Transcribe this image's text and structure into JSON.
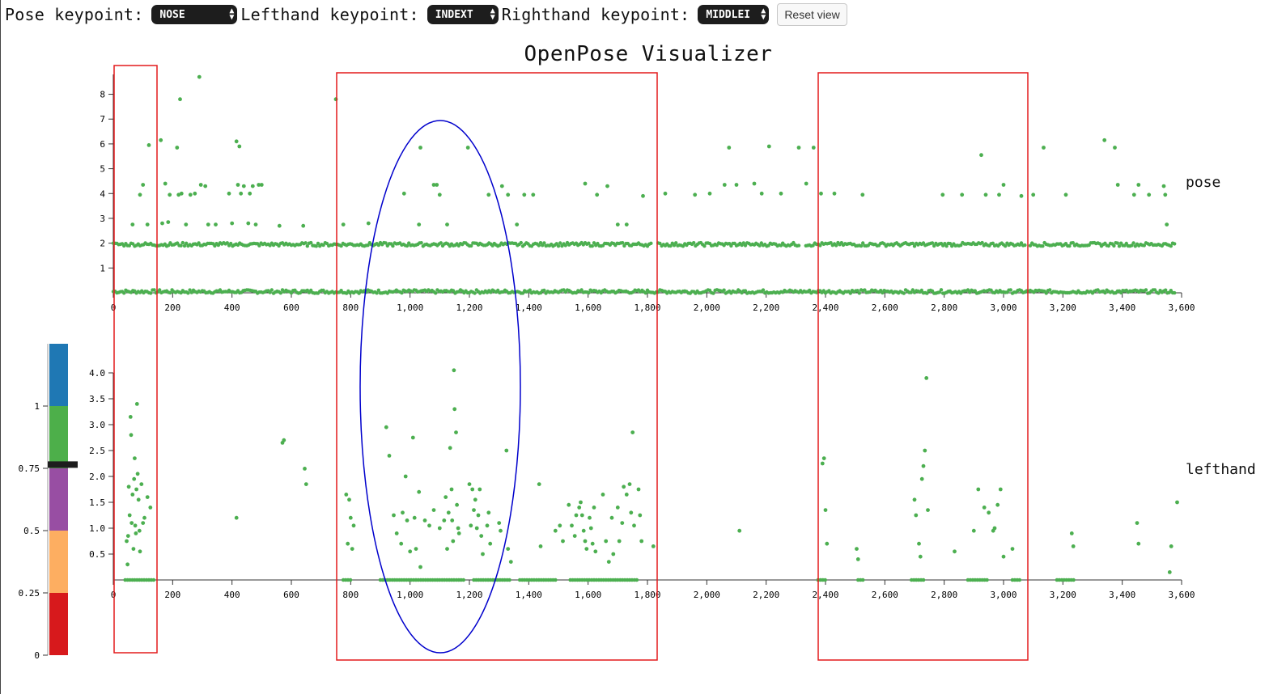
{
  "toolbar": {
    "pose_label": "Pose keypoint:",
    "pose_value": "NOSE",
    "lefthand_label": "Lefthand keypoint:",
    "lefthand_value": "INDEXT",
    "righthand_label": "Righthand keypoint:",
    "righthand_value": "MIDDLEI",
    "reset_label": "Reset view"
  },
  "colors": {
    "points": "#4caf50",
    "highlight_rect": "#e31a1c",
    "highlight_ellipse": "#0000cc",
    "legend_scale": [
      "#d7191c",
      "#fdae61",
      "#984ea3",
      "#4daf4a",
      "#1f78b4"
    ]
  },
  "chart_data": [
    {
      "type": "scatter",
      "title": "OpenPose Visualizer",
      "series": [
        {
          "name": "pose"
        }
      ],
      "xlim": [
        0,
        3600
      ],
      "ylim": [
        0,
        8.8
      ],
      "x_ticks": [
        "0",
        "200",
        "400",
        "600",
        "800",
        "1,000",
        "1,200",
        "1,400",
        "1,600",
        "1,800",
        "2,000",
        "2,200",
        "2,400",
        "2,600",
        "2,800",
        "3,000",
        "3,200",
        "3,400",
        "3,600"
      ],
      "y_ticks": [
        "1",
        "2",
        "3",
        "4",
        "5",
        "6",
        "7",
        "8"
      ],
      "dense_bands_y": [
        0.05,
        1.95
      ],
      "points": [
        [
          65,
          2.75
        ],
        [
          90,
          3.95
        ],
        [
          100,
          4.35
        ],
        [
          115,
          2.75
        ],
        [
          120,
          5.95
        ],
        [
          160,
          6.15
        ],
        [
          165,
          2.8
        ],
        [
          175,
          4.4
        ],
        [
          185,
          2.85
        ],
        [
          190,
          3.95
        ],
        [
          215,
          5.85
        ],
        [
          220,
          3.95
        ],
        [
          225,
          7.8
        ],
        [
          230,
          4.0
        ],
        [
          245,
          2.75
        ],
        [
          260,
          3.95
        ],
        [
          275,
          4.0
        ],
        [
          290,
          8.7
        ],
        [
          295,
          4.35
        ],
        [
          310,
          4.3
        ],
        [
          320,
          2.75
        ],
        [
          345,
          2.75
        ],
        [
          390,
          4.0
        ],
        [
          400,
          2.8
        ],
        [
          415,
          6.1
        ],
        [
          420,
          4.35
        ],
        [
          425,
          5.9
        ],
        [
          430,
          4.0
        ],
        [
          440,
          4.3
        ],
        [
          455,
          2.8
        ],
        [
          460,
          4.0
        ],
        [
          470,
          4.3
        ],
        [
          480,
          2.75
        ],
        [
          490,
          4.35
        ],
        [
          500,
          4.35
        ],
        [
          560,
          2.7
        ],
        [
          640,
          2.7
        ],
        [
          750,
          7.8
        ],
        [
          775,
          2.75
        ],
        [
          860,
          2.8
        ],
        [
          980,
          4.0
        ],
        [
          1030,
          2.75
        ],
        [
          1035,
          5.85
        ],
        [
          1080,
          4.35
        ],
        [
          1090,
          4.35
        ],
        [
          1100,
          3.95
        ],
        [
          1125,
          2.75
        ],
        [
          1195,
          5.85
        ],
        [
          1265,
          3.95
        ],
        [
          1310,
          4.3
        ],
        [
          1330,
          3.95
        ],
        [
          1360,
          2.75
        ],
        [
          1385,
          3.95
        ],
        [
          1415,
          3.95
        ],
        [
          1590,
          4.4
        ],
        [
          1630,
          3.95
        ],
        [
          1665,
          4.3
        ],
        [
          1700,
          2.75
        ],
        [
          1730,
          2.75
        ],
        [
          1785,
          3.9
        ],
        [
          1860,
          4.0
        ],
        [
          1960,
          3.95
        ],
        [
          2010,
          4.0
        ],
        [
          2060,
          4.35
        ],
        [
          2075,
          5.85
        ],
        [
          2100,
          4.35
        ],
        [
          2160,
          4.4
        ],
        [
          2185,
          4.0
        ],
        [
          2210,
          5.9
        ],
        [
          2250,
          4.0
        ],
        [
          2310,
          5.85
        ],
        [
          2335,
          4.4
        ],
        [
          2360,
          5.85
        ],
        [
          2385,
          4.0
        ],
        [
          2430,
          4.0
        ],
        [
          2525,
          3.95
        ],
        [
          2795,
          3.95
        ],
        [
          2860,
          3.95
        ],
        [
          2925,
          5.55
        ],
        [
          2940,
          3.95
        ],
        [
          2985,
          3.95
        ],
        [
          3000,
          4.35
        ],
        [
          3060,
          3.9
        ],
        [
          3100,
          3.95
        ],
        [
          3135,
          5.85
        ],
        [
          3210,
          3.95
        ],
        [
          3340,
          6.15
        ],
        [
          3375,
          5.85
        ],
        [
          3385,
          4.35
        ],
        [
          3440,
          3.95
        ],
        [
          3455,
          4.35
        ],
        [
          3490,
          3.95
        ],
        [
          3540,
          4.3
        ],
        [
          3545,
          3.95
        ],
        [
          3550,
          2.75
        ]
      ]
    },
    {
      "type": "scatter",
      "series": [
        {
          "name": "lefthand"
        }
      ],
      "xlim": [
        0,
        3600
      ],
      "ylim": [
        0,
        4.0
      ],
      "x_ticks": [
        "0",
        "200",
        "400",
        "600",
        "800",
        "1,000",
        "1,200",
        "1,400",
        "1,600",
        "1,800",
        "2,000",
        "2,200",
        "2,400",
        "2,600",
        "2,800",
        "3,000",
        "3,200",
        "3,400",
        "3,600"
      ],
      "y_ticks": [
        "0.5",
        "1.0",
        "1.5",
        "2.0",
        "2.5",
        "3.0",
        "3.5",
        "4.0"
      ],
      "baseline_clusters": [
        [
          40,
          140
        ],
        [
          775,
          800
        ],
        [
          900,
          1180
        ],
        [
          1215,
          1340
        ],
        [
          1370,
          1490
        ],
        [
          1540,
          1770
        ],
        [
          2375,
          2400
        ],
        [
          2510,
          2530
        ],
        [
          2690,
          2730
        ],
        [
          2880,
          2950
        ],
        [
          3030,
          3060
        ],
        [
          3180,
          3240
        ]
      ],
      "points": [
        [
          45,
          0.75
        ],
        [
          48,
          0.3
        ],
        [
          50,
          0.85
        ],
        [
          52,
          1.8
        ],
        [
          55,
          1.25
        ],
        [
          58,
          3.15
        ],
        [
          60,
          2.8
        ],
        [
          62,
          1.1
        ],
        [
          65,
          1.65
        ],
        [
          68,
          0.6
        ],
        [
          70,
          1.95
        ],
        [
          72,
          2.35
        ],
        [
          74,
          1.05
        ],
        [
          76,
          0.9
        ],
        [
          78,
          1.75
        ],
        [
          80,
          3.4
        ],
        [
          82,
          2.05
        ],
        [
          85,
          1.55
        ],
        [
          88,
          0.95
        ],
        [
          90,
          0.55
        ],
        [
          95,
          1.85
        ],
        [
          100,
          1.1
        ],
        [
          105,
          1.2
        ],
        [
          115,
          1.6
        ],
        [
          125,
          1.4
        ],
        [
          415,
          1.2
        ],
        [
          570,
          2.65
        ],
        [
          575,
          2.7
        ],
        [
          645,
          2.15
        ],
        [
          650,
          1.85
        ],
        [
          785,
          1.65
        ],
        [
          790,
          0.7
        ],
        [
          795,
          1.55
        ],
        [
          800,
          1.2
        ],
        [
          805,
          0.6
        ],
        [
          810,
          1.05
        ],
        [
          920,
          2.95
        ],
        [
          930,
          2.4
        ],
        [
          945,
          1.25
        ],
        [
          955,
          0.9
        ],
        [
          970,
          0.7
        ],
        [
          975,
          1.3
        ],
        [
          985,
          2.0
        ],
        [
          990,
          1.15
        ],
        [
          1000,
          0.55
        ],
        [
          1010,
          2.75
        ],
        [
          1015,
          1.2
        ],
        [
          1020,
          0.6
        ],
        [
          1030,
          1.7
        ],
        [
          1035,
          0.25
        ],
        [
          1050,
          1.15
        ],
        [
          1065,
          1.05
        ],
        [
          1080,
          1.35
        ],
        [
          1100,
          1.0
        ],
        [
          1115,
          1.15
        ],
        [
          1120,
          1.6
        ],
        [
          1125,
          0.6
        ],
        [
          1130,
          1.3
        ],
        [
          1135,
          2.55
        ],
        [
          1140,
          1.75
        ],
        [
          1142,
          1.15
        ],
        [
          1145,
          0.75
        ],
        [
          1148,
          4.05
        ],
        [
          1150,
          3.3
        ],
        [
          1155,
          2.85
        ],
        [
          1158,
          1.45
        ],
        [
          1162,
          1.0
        ],
        [
          1165,
          0.9
        ],
        [
          1200,
          1.85
        ],
        [
          1205,
          1.05
        ],
        [
          1210,
          1.75
        ],
        [
          1215,
          1.35
        ],
        [
          1220,
          1.55
        ],
        [
          1225,
          1.0
        ],
        [
          1230,
          1.25
        ],
        [
          1235,
          1.75
        ],
        [
          1240,
          0.85
        ],
        [
          1245,
          0.5
        ],
        [
          1260,
          1.05
        ],
        [
          1265,
          1.3
        ],
        [
          1270,
          0.7
        ],
        [
          1300,
          1.1
        ],
        [
          1305,
          0.95
        ],
        [
          1325,
          2.5
        ],
        [
          1330,
          0.6
        ],
        [
          1340,
          0.35
        ],
        [
          1435,
          1.85
        ],
        [
          1440,
          0.65
        ],
        [
          1490,
          0.95
        ],
        [
          1505,
          1.05
        ],
        [
          1515,
          0.75
        ],
        [
          1535,
          1.45
        ],
        [
          1545,
          1.05
        ],
        [
          1555,
          0.85
        ],
        [
          1560,
          1.25
        ],
        [
          1570,
          1.4
        ],
        [
          1575,
          1.5
        ],
        [
          1580,
          1.25
        ],
        [
          1585,
          0.95
        ],
        [
          1590,
          0.75
        ],
        [
          1595,
          0.6
        ],
        [
          1605,
          1.2
        ],
        [
          1610,
          1.0
        ],
        [
          1615,
          0.7
        ],
        [
          1620,
          1.4
        ],
        [
          1625,
          0.55
        ],
        [
          1650,
          1.65
        ],
        [
          1660,
          0.75
        ],
        [
          1670,
          0.35
        ],
        [
          1680,
          1.2
        ],
        [
          1685,
          0.5
        ],
        [
          1700,
          1.4
        ],
        [
          1705,
          0.75
        ],
        [
          1715,
          1.1
        ],
        [
          1720,
          1.8
        ],
        [
          1730,
          1.65
        ],
        [
          1740,
          1.85
        ],
        [
          1745,
          1.3
        ],
        [
          1750,
          2.85
        ],
        [
          1755,
          1.05
        ],
        [
          1770,
          1.75
        ],
        [
          1775,
          1.25
        ],
        [
          1780,
          0.75
        ],
        [
          1820,
          0.65
        ],
        [
          2110,
          0.95
        ],
        [
          2390,
          2.25
        ],
        [
          2395,
          2.35
        ],
        [
          2400,
          1.35
        ],
        [
          2405,
          0.7
        ],
        [
          2505,
          0.6
        ],
        [
          2510,
          0.4
        ],
        [
          2700,
          1.55
        ],
        [
          2705,
          1.25
        ],
        [
          2715,
          0.7
        ],
        [
          2720,
          0.45
        ],
        [
          2725,
          1.95
        ],
        [
          2730,
          2.2
        ],
        [
          2735,
          2.5
        ],
        [
          2740,
          3.9
        ],
        [
          2745,
          1.35
        ],
        [
          2835,
          0.55
        ],
        [
          2900,
          0.95
        ],
        [
          2915,
          1.75
        ],
        [
          2935,
          1.4
        ],
        [
          2950,
          1.3
        ],
        [
          2965,
          0.95
        ],
        [
          2970,
          1.0
        ],
        [
          2980,
          1.45
        ],
        [
          2990,
          1.75
        ],
        [
          3000,
          0.45
        ],
        [
          3030,
          0.6
        ],
        [
          3230,
          0.9
        ],
        [
          3235,
          0.65
        ],
        [
          3450,
          1.1
        ],
        [
          3455,
          0.7
        ],
        [
          3560,
          0.15
        ],
        [
          3565,
          0.65
        ],
        [
          3585,
          1.5
        ]
      ]
    },
    {
      "type": "heatmap",
      "y_ticks": [
        "0",
        "0.25",
        "0.5",
        "0.75",
        "1"
      ],
      "ylim": [
        0,
        1.25
      ],
      "marker_value": 0.765
    }
  ]
}
